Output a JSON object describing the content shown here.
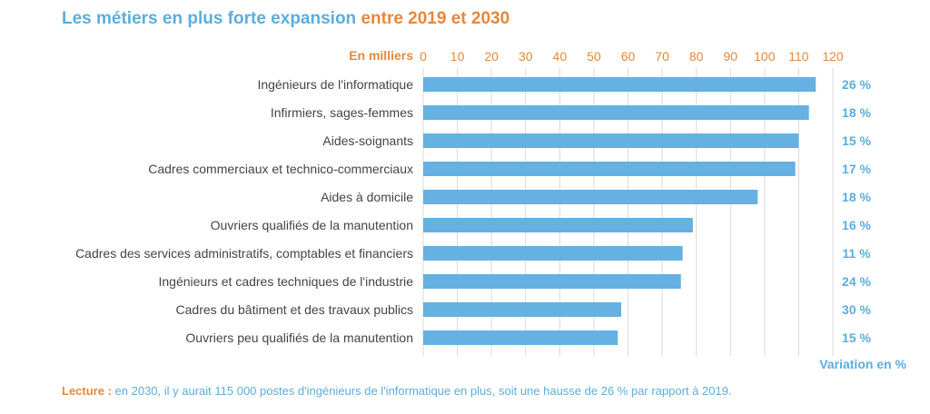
{
  "title": {
    "part1": "Les métiers en plus forte expansion",
    "part2": "entre 2019 et 2030"
  },
  "unit_label": "En milliers",
  "variation_label": "Variation en %",
  "lecture": {
    "label": "Lecture :",
    "text": "en 2030, il y aurait 115 000 postes d'ingénieurs de l'informatique en plus, soit une hausse de 26 % par rapport à 2019."
  },
  "colors": {
    "bar": "#64b1e2",
    "accent_orange": "#e8873a",
    "accent_blue": "#5aaedf",
    "grid": "#d9d9d9"
  },
  "chart_data": {
    "type": "bar",
    "orientation": "horizontal",
    "title": "Les métiers en plus forte expansion entre 2019 et 2030",
    "xlabel": "En milliers",
    "xlim": [
      0,
      120
    ],
    "xticks": [
      0,
      10,
      20,
      30,
      40,
      50,
      60,
      70,
      80,
      90,
      100,
      110,
      120
    ],
    "xtick_labels": [
      "0",
      "10",
      "20",
      "30",
      "40",
      "50",
      "60",
      "70",
      "80",
      "90",
      "100",
      "110",
      "120"
    ],
    "axis_position": "top",
    "grid": true,
    "categories": [
      "Ingénieurs de l'informatique",
      "Infirmiers, sages-femmes",
      "Aides-soignants",
      "Cadres commerciaux et technico-commerciaux",
      "Aides à domicile",
      "Ouvriers qualifiés de la manutention",
      "Cadres des services administratifs, comptables et financiers",
      "Ingénieurs et cadres techniques de l'industrie",
      "Cadres du bâtiment et des travaux publics",
      "Ouvriers peu qualifiés de la manutention"
    ],
    "values": [
      115,
      113,
      110,
      109,
      98,
      79,
      76,
      75.5,
      58,
      57
    ],
    "variation_labels": [
      "26 %",
      "18 %",
      "15 %",
      "17 %",
      "18 %",
      "16 %",
      "11 %",
      "24 %",
      "30 %",
      "15 %"
    ]
  }
}
